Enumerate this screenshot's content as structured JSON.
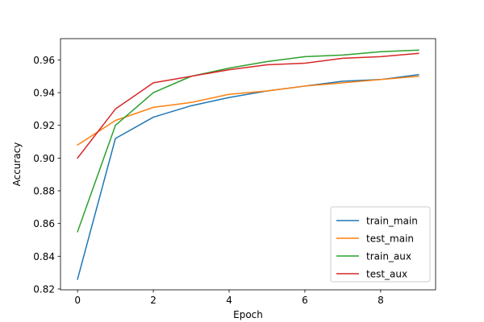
{
  "chart_data": {
    "type": "line",
    "title": "",
    "xlabel": "Epoch",
    "ylabel": "Accuracy",
    "xlim": [
      -0.45,
      9.45
    ],
    "ylim": [
      0.8195,
      0.973
    ],
    "xticks": [
      0,
      2,
      4,
      6,
      8
    ],
    "yticks": [
      0.82,
      0.84,
      0.86,
      0.88,
      0.9,
      0.92,
      0.94,
      0.96
    ],
    "xtick_labels": [
      "0",
      "2",
      "4",
      "6",
      "8"
    ],
    "ytick_labels": [
      "0.82",
      "0.84",
      "0.86",
      "0.88",
      "0.90",
      "0.92",
      "0.94",
      "0.96"
    ],
    "grid": false,
    "legend_position": "lower-right",
    "x": [
      0,
      1,
      2,
      3,
      4,
      5,
      6,
      7,
      8,
      9
    ],
    "series": [
      {
        "name": "train_main",
        "color": "#1f77b4",
        "values": [
          0.826,
          0.912,
          0.925,
          0.932,
          0.937,
          0.941,
          0.944,
          0.947,
          0.948,
          0.951
        ]
      },
      {
        "name": "test_main",
        "color": "#ff7f0e",
        "values": [
          0.908,
          0.923,
          0.931,
          0.934,
          0.939,
          0.941,
          0.944,
          0.946,
          0.948,
          0.95
        ]
      },
      {
        "name": "train_aux",
        "color": "#2ca02c",
        "values": [
          0.855,
          0.92,
          0.94,
          0.95,
          0.955,
          0.959,
          0.962,
          0.963,
          0.965,
          0.966
        ]
      },
      {
        "name": "test_aux",
        "color": "#d62728",
        "values": [
          0.9,
          0.93,
          0.946,
          0.95,
          0.954,
          0.957,
          0.958,
          0.961,
          0.962,
          0.964
        ]
      }
    ]
  }
}
